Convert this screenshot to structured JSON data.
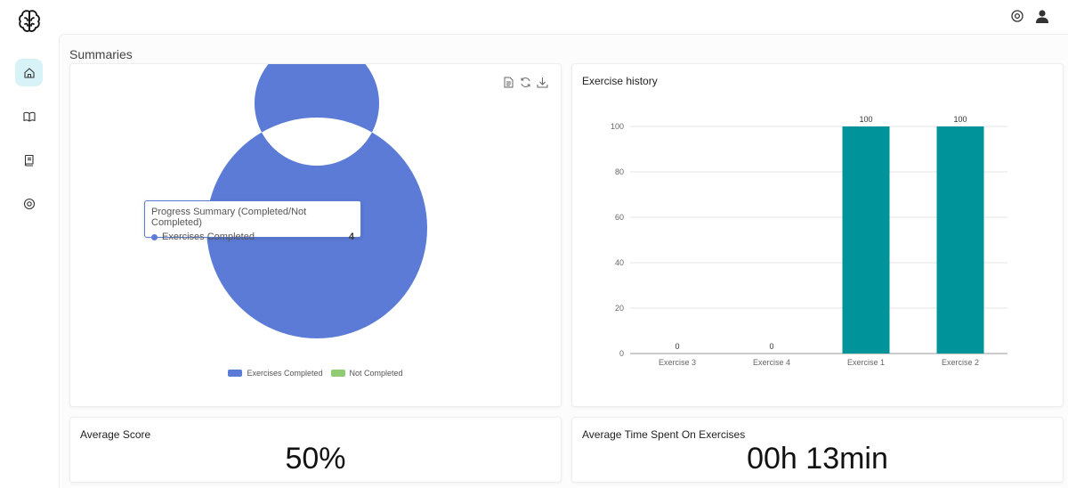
{
  "header": {
    "logo_icon": "brain-icon",
    "settings_icon": "settings-icon",
    "user_icon": "user-icon"
  },
  "sidebar": {
    "items": [
      {
        "icon": "home-icon",
        "active": true
      },
      {
        "icon": "book-open-icon",
        "active": false
      },
      {
        "icon": "book-icon",
        "active": false
      },
      {
        "icon": "settings-icon",
        "active": false
      }
    ]
  },
  "main": {
    "section_title": "Summaries"
  },
  "progress_card": {
    "tools": [
      "document-icon",
      "refresh-icon",
      "download-icon"
    ],
    "tooltip": {
      "title": "Progress Summary (Completed/Not Completed)",
      "label": "Exercises Completed",
      "value": "4"
    },
    "legend": [
      "Exercises Completed",
      "Not Completed"
    ]
  },
  "history_card": {
    "title": "Exercise history"
  },
  "score_card": {
    "title": "Average Score",
    "value": "50%"
  },
  "time_card": {
    "title": "Average Time Spent On Exercises",
    "value": "00h 13min"
  },
  "colors": {
    "accent": "#d7f3f7",
    "donut_completed": "#5b7bd6",
    "donut_not_completed": "#91cc75",
    "bar": "#00939a"
  },
  "chart_data": [
    {
      "type": "pie",
      "title": "Progress Summary (Completed/Not Completed)",
      "categories": [
        "Exercises Completed",
        "Not Completed"
      ],
      "values": [
        4,
        0
      ],
      "legend": "bottom"
    },
    {
      "type": "bar",
      "title": "Exercise history",
      "categories": [
        "Exercise 3",
        "Exercise 4",
        "Exercise 1",
        "Exercise 2"
      ],
      "values": [
        0,
        0,
        100,
        100
      ],
      "ylim": [
        0,
        100
      ],
      "yticks": [
        0,
        20,
        40,
        60,
        80,
        100
      ],
      "grid": true
    }
  ]
}
